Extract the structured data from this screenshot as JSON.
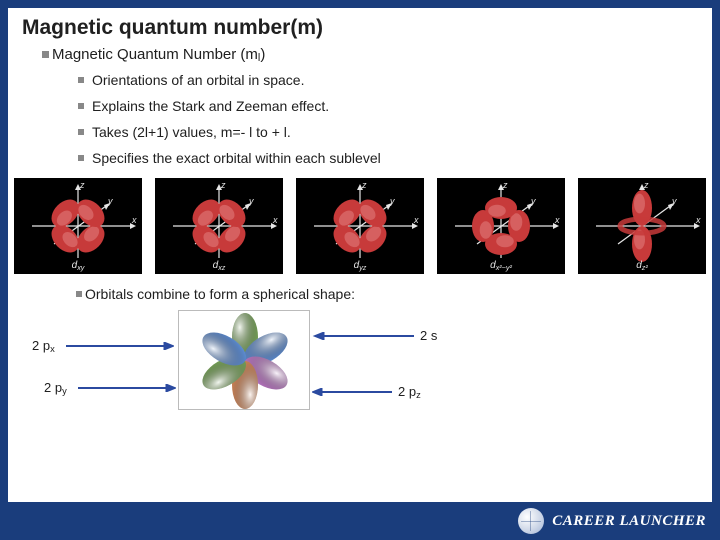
{
  "slide": {
    "title": "Magnetic quantum number(m)",
    "top_bullet_html": "Magnetic Quantum Number (m<sub>l</sub>)",
    "sub_bullets": [
      "Orientations of an orbital in space.",
      "Explains the Stark and Zeeman effect.",
      "Takes (2l+1) values, m=- l to + l.",
      "Specifies the exact orbital within each sublevel"
    ],
    "mid_bullet": "Orbitals combine to form a spherical shape:"
  },
  "orbital_tiles": [
    {
      "name": "d_xy",
      "label_html": "d<sub>xy</sub>"
    },
    {
      "name": "d_xz",
      "label_html": "d<sub>xz</sub>"
    },
    {
      "name": "d_yz",
      "label_html": "d<sub>yz</sub>"
    },
    {
      "name": "d_x2-y2",
      "label_html": "d<sub>x²−y²</sub>"
    },
    {
      "name": "d_z2",
      "label_html": "d<sub>z²</sub>"
    }
  ],
  "orbital_style": {
    "tile_bg": "#000000",
    "lobe_fill": "#c73a3a",
    "lobe_highlight": "#e07a7a",
    "axis_color": "#e6e6e6",
    "axis_labels": {
      "x": "x",
      "y": "y",
      "z": "z"
    },
    "label_color": "#e6e6e6",
    "axis_width": 1.2
  },
  "combined": {
    "labels": {
      "px_html": "2 p<sub>x</sub>",
      "py_html": "2 p<sub>y</sub>",
      "s": "2 s",
      "pz_html": "2 p<sub>z</sub>"
    },
    "arrow_color": "#2b4aa0",
    "petal_colors": [
      "#7aa85a",
      "#5f8fd6",
      "#c079c9",
      "#d98a5a",
      "#7aa85a",
      "#5f8fd6"
    ]
  },
  "footer": {
    "brand": "CAREER LAUNCHER",
    "bg": "#1a3d7c",
    "text_color": "#ffffff"
  },
  "frame": {
    "bg": "#ffffff",
    "border_color": "#1a3d7c"
  }
}
